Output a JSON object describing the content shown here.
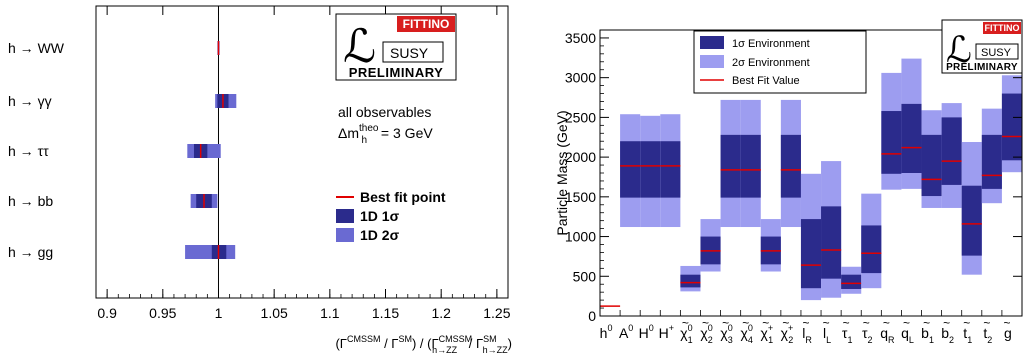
{
  "colors": {
    "sigma1": "#2b2b8c",
    "sigma2_left": "#6a6ad2",
    "sigma2_right": "#9d9df0",
    "best_fit": "#e00000",
    "logo_red": "#d81e1e"
  },
  "logo": {
    "fittino": "FITTINO",
    "susy": "SUSY",
    "preliminary": "PRELIMINARY"
  },
  "chart_data": [
    {
      "type": "interval",
      "orientation": "horizontal",
      "xlabel": "(Γ^CMSSM / Γ^SM) / (Γ^CMSSM_h→ZZ / Γ^SM_h→ZZ)",
      "xlabel_parts": {
        "open1": "(Γ",
        "cmssm1": "CMSSM",
        "sep1": " / Γ",
        "sm1": "SM",
        "mid": ") / (Γ",
        "cmssm2": "CMSSM",
        "hzz1": "h→ZZ",
        "sep2": " / Γ",
        "sm2": "SM",
        "hzz2": "h→ZZ",
        "close": ")"
      },
      "xlim": [
        0.89,
        1.26
      ],
      "xticks": [
        "0.9",
        "0.95",
        "1",
        "1.05",
        "1.1",
        "1.15",
        "1.2",
        "1.25"
      ],
      "xtick_values": [
        0.9,
        0.95,
        1.0,
        1.05,
        1.1,
        1.15,
        1.2,
        1.25
      ],
      "reference_line": 1.0,
      "categories": [
        "h → WW",
        "h → γγ",
        "h → ττ",
        "h → bb",
        "h → gg"
      ],
      "best_fit": [
        1.0,
        1.004,
        0.984,
        0.987,
        1.0
      ],
      "sigma1": [
        [
          0.9995,
          1.0005
        ],
        [
          0.999,
          1.009
        ],
        [
          0.978,
          0.99
        ],
        [
          0.98,
          0.994
        ],
        [
          0.994,
          1.007
        ]
      ],
      "sigma2": [
        [
          0.999,
          1.001
        ],
        [
          0.997,
          1.016
        ],
        [
          0.972,
          1.002
        ],
        [
          0.975,
          0.999
        ],
        [
          0.97,
          1.015
        ]
      ],
      "annotations": {
        "line1": "all observables",
        "line2_prefix": "Δm",
        "line2_sup": "theo",
        "line2_sub": "h",
        "line2_suffix": " = 3 GeV"
      },
      "legend": [
        "Best fit point",
        "1D 1σ",
        "1D 2σ"
      ],
      "legend_position": "right"
    },
    {
      "type": "interval",
      "orientation": "vertical",
      "ylabel": "Particle Mass (GeV)",
      "ylim": [
        0,
        3600
      ],
      "yticks": [
        "0",
        "500",
        "1000",
        "1500",
        "2000",
        "2500",
        "3000",
        "3500"
      ],
      "ytick_values": [
        0,
        500,
        1000,
        1500,
        2000,
        2500,
        3000,
        3500
      ],
      "categories": [
        "h0",
        "A0",
        "H0",
        "H+",
        "χ̃01",
        "χ̃02",
        "χ̃03",
        "χ̃04",
        "χ̃+1",
        "χ̃+2",
        "l̃R",
        "l̃L",
        "τ̃1",
        "τ̃2",
        "q̃R",
        "q̃L",
        "b̃1",
        "b̃2",
        "t̃1",
        "t̃2",
        "g̃"
      ],
      "category_labels": [
        {
          "base": "h",
          "sup": "0",
          "sub": "",
          "tilde": false
        },
        {
          "base": "A",
          "sup": "0",
          "sub": "",
          "tilde": false
        },
        {
          "base": "H",
          "sup": "0",
          "sub": "",
          "tilde": false
        },
        {
          "base": "H",
          "sup": "+",
          "sub": "",
          "tilde": false
        },
        {
          "base": "χ",
          "sup": "0",
          "sub": "1",
          "tilde": true
        },
        {
          "base": "χ",
          "sup": "0",
          "sub": "2",
          "tilde": true
        },
        {
          "base": "χ",
          "sup": "0",
          "sub": "3",
          "tilde": true
        },
        {
          "base": "χ",
          "sup": "0",
          "sub": "4",
          "tilde": true
        },
        {
          "base": "χ",
          "sup": "+",
          "sub": "1",
          "tilde": true
        },
        {
          "base": "χ",
          "sup": "+",
          "sub": "2",
          "tilde": true
        },
        {
          "base": "l",
          "sup": "",
          "sub": "R",
          "tilde": true
        },
        {
          "base": "l",
          "sup": "",
          "sub": "L",
          "tilde": true
        },
        {
          "base": "τ",
          "sup": "",
          "sub": "1",
          "tilde": true
        },
        {
          "base": "τ",
          "sup": "",
          "sub": "2",
          "tilde": true
        },
        {
          "base": "q",
          "sup": "",
          "sub": "R",
          "tilde": true
        },
        {
          "base": "q",
          "sup": "",
          "sub": "L",
          "tilde": true
        },
        {
          "base": "b",
          "sup": "",
          "sub": "1",
          "tilde": true
        },
        {
          "base": "b",
          "sup": "",
          "sub": "2",
          "tilde": true
        },
        {
          "base": "t",
          "sup": "",
          "sub": "1",
          "tilde": true
        },
        {
          "base": "t",
          "sup": "",
          "sub": "2",
          "tilde": true
        },
        {
          "base": "g",
          "sup": "",
          "sub": "",
          "tilde": true
        }
      ],
      "best_fit": [
        125,
        1890,
        1890,
        1890,
        420,
        820,
        1840,
        1840,
        820,
        1840,
        640,
        830,
        410,
        790,
        2040,
        2120,
        1720,
        1950,
        1160,
        1770,
        2260
      ],
      "sigma1": [
        null,
        [
          1490,
          2200
        ],
        [
          1490,
          2200
        ],
        [
          1490,
          2200
        ],
        [
          360,
          520
        ],
        [
          650,
          1000
        ],
        [
          1490,
          2280
        ],
        [
          1490,
          2280
        ],
        [
          650,
          1000
        ],
        [
          1490,
          2280
        ],
        [
          350,
          1220
        ],
        [
          470,
          1380
        ],
        [
          340,
          520
        ],
        [
          540,
          1140
        ],
        [
          1790,
          2580
        ],
        [
          1800,
          2670
        ],
        [
          1510,
          2280
        ],
        [
          1650,
          2500
        ],
        [
          760,
          1640
        ],
        [
          1600,
          2280
        ],
        [
          1960,
          2800
        ]
      ],
      "sigma2": [
        null,
        [
          1120,
          2540
        ],
        [
          1120,
          2520
        ],
        [
          1120,
          2540
        ],
        [
          310,
          630
        ],
        [
          560,
          1220
        ],
        [
          1120,
          2720
        ],
        [
          1120,
          2720
        ],
        [
          560,
          1220
        ],
        [
          1120,
          2720
        ],
        [
          200,
          1790
        ],
        [
          230,
          1950
        ],
        [
          280,
          620
        ],
        [
          350,
          1540
        ],
        [
          1590,
          3060
        ],
        [
          1600,
          3240
        ],
        [
          1360,
          2590
        ],
        [
          1360,
          2680
        ],
        [
          520,
          2190
        ],
        [
          1420,
          2610
        ],
        [
          1810,
          3030
        ]
      ],
      "legend": [
        "1σ Environment",
        "2σ Environment",
        "Best Fit Value"
      ],
      "legend_position": "top"
    }
  ]
}
